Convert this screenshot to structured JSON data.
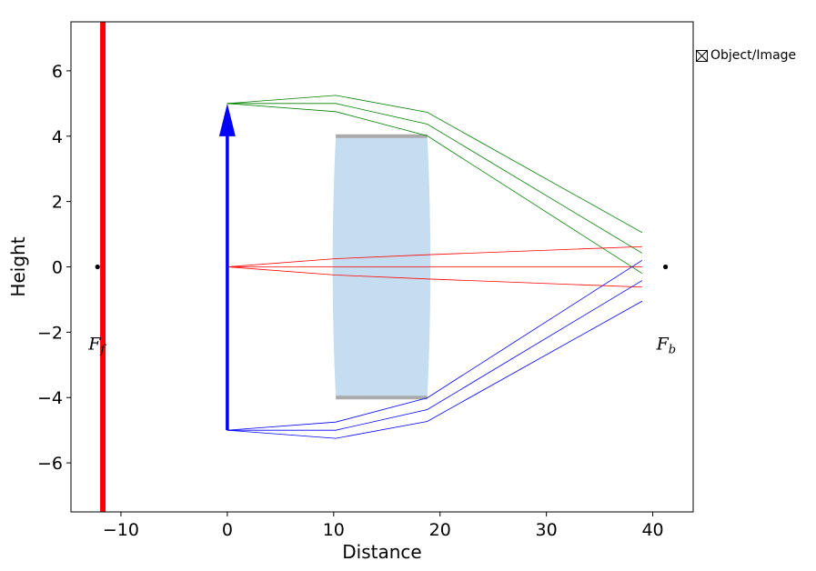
{
  "chart_data": {
    "type": "line",
    "xlabel": "Distance",
    "ylabel": "Height",
    "xlim": [
      -14.7,
      43.8
    ],
    "ylim": [
      -7.5,
      7.5
    ],
    "xticks": [
      -10,
      0,
      10,
      20,
      30,
      40
    ],
    "xtick_labels": [
      "−10",
      "0",
      "10",
      "20",
      "30",
      "40"
    ],
    "yticks": [
      -6,
      -4,
      -2,
      0,
      2,
      4,
      6
    ],
    "ytick_labels": [
      "−6",
      "−4",
      "−2",
      "0",
      "2",
      "4",
      "6"
    ],
    "grid": false,
    "object": {
      "x": 0,
      "y_from": -5,
      "y_to": 5,
      "color": "#0000ff"
    },
    "image_plane": {
      "x": -11.7,
      "color": "#ff0000"
    },
    "lens": {
      "x_front": 10.2,
      "x_back": 18.8,
      "half_height": 4.0,
      "front_vertex_x": 9.9,
      "back_vertex_x": 19.1,
      "fill": "#c4ddf1",
      "aperture_color": "#aaaaaa"
    },
    "focal_points": [
      {
        "name": "front",
        "x": -12.2,
        "y": 0,
        "label": "F",
        "subscript": "f"
      },
      {
        "name": "back",
        "x": 41.2,
        "y": 0,
        "label": "F",
        "subscript": "b"
      }
    ],
    "ray_bundles": [
      {
        "color": "#008000",
        "rays": [
          [
            [
              0,
              5
            ],
            [
              10.2,
              5.25
            ],
            [
              18.8,
              4.73
            ],
            [
              39,
              1.05
            ]
          ],
          [
            [
              0,
              5
            ],
            [
              10.2,
              5.0
            ],
            [
              18.8,
              4.37
            ],
            [
              39,
              0.42
            ]
          ],
          [
            [
              0,
              5
            ],
            [
              10.2,
              4.75
            ],
            [
              18.8,
              4.01
            ],
            [
              39,
              -0.2
            ]
          ]
        ]
      },
      {
        "color": "#ff0000",
        "rays": [
          [
            [
              0,
              0
            ],
            [
              10.2,
              0.25
            ],
            [
              18.8,
              0.37
            ],
            [
              39,
              0.62
            ]
          ],
          [
            [
              0,
              0
            ],
            [
              10.2,
              0
            ],
            [
              18.8,
              0
            ],
            [
              39,
              0
            ]
          ],
          [
            [
              0,
              0
            ],
            [
              10.2,
              -0.25
            ],
            [
              18.8,
              -0.37
            ],
            [
              39,
              -0.62
            ]
          ]
        ]
      },
      {
        "color": "#0000ff",
        "rays": [
          [
            [
              0,
              -5
            ],
            [
              10.2,
              -4.75
            ],
            [
              18.8,
              -4.01
            ],
            [
              39,
              0.2
            ]
          ],
          [
            [
              0,
              -5
            ],
            [
              10.2,
              -5.0
            ],
            [
              18.8,
              -4.37
            ],
            [
              39,
              -0.42
            ]
          ],
          [
            [
              0,
              -5
            ],
            [
              10.2,
              -5.25
            ],
            [
              18.8,
              -4.73
            ],
            [
              39,
              -1.05
            ]
          ]
        ]
      }
    ],
    "legend": {
      "label": "Object/Image",
      "position": "outside-top-right",
      "checked": true
    }
  }
}
